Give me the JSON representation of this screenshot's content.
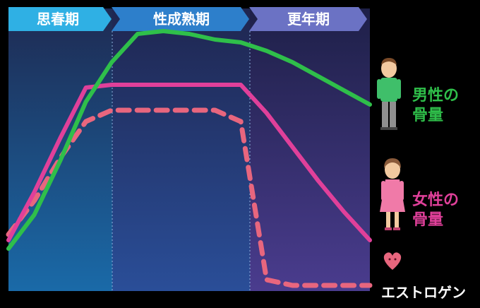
{
  "chart_data": {
    "type": "line",
    "phases": [
      "思春期",
      "性成熟期",
      "更年期"
    ],
    "x": [
      0,
      1,
      2,
      3,
      4,
      5,
      6,
      7,
      8,
      9,
      10,
      11,
      12,
      13,
      14
    ],
    "ylim": [
      0,
      100
    ],
    "grid": false,
    "legend": "right",
    "series": [
      {
        "key": "male",
        "name": "男性の骨量",
        "name_lines": [
          "男性の",
          "骨量"
        ],
        "color": "#2fbf4a",
        "dash": "solid",
        "values": [
          15,
          27,
          46,
          67,
          81,
          91,
          92,
          91,
          89,
          88,
          85,
          81,
          76,
          71,
          66
        ]
      },
      {
        "key": "female",
        "name": "女性の骨量",
        "name_lines": [
          "女性の",
          "骨量"
        ],
        "color": "#e0409a",
        "dash": "solid",
        "values": [
          18,
          35,
          54,
          72,
          73,
          73,
          73,
          73,
          73,
          73,
          63,
          51,
          39,
          28,
          18
        ]
      },
      {
        "key": "estrogen",
        "name": "エストロゲン",
        "color": "#e8667e",
        "dash": "dashed",
        "values": [
          20,
          32,
          47,
          60,
          64,
          64,
          64,
          64,
          64,
          60,
          4,
          2,
          2,
          2,
          2
        ]
      }
    ]
  }
}
